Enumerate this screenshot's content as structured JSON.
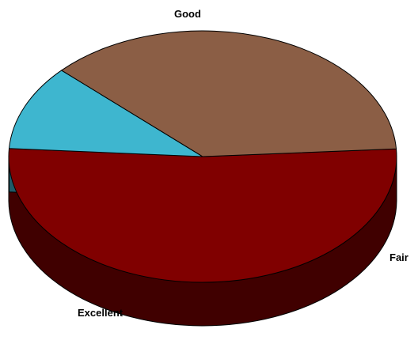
{
  "chart_data": {
    "type": "pie",
    "style": "3d",
    "slices": [
      {
        "label": "Good",
        "value": 52,
        "color": "#800000"
      },
      {
        "label": "Fair",
        "value": 11,
        "color": "#3EB6CF"
      },
      {
        "label": "Excellent",
        "value": 37,
        "color": "#8B5E45"
      }
    ],
    "legend": "none"
  }
}
